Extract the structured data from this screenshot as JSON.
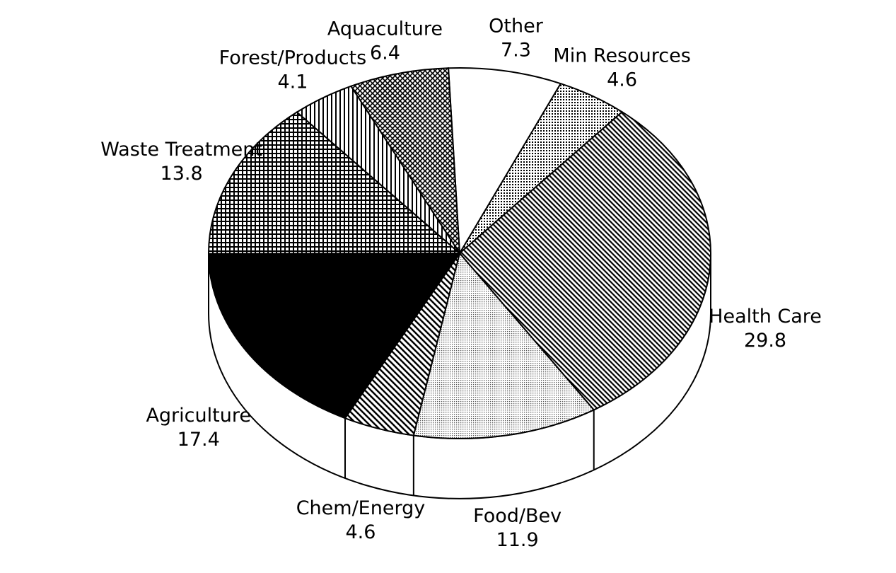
{
  "chart_data": {
    "type": "pie",
    "categories": [
      "Other",
      "Min Resources",
      "Health Care",
      "Food/Bev",
      "Chem/Energy",
      "Agriculture",
      "Waste Treatment",
      "Forest/Products",
      "Aquaculture"
    ],
    "values": [
      7.3,
      4.6,
      29.8,
      11.9,
      4.6,
      17.4,
      13.8,
      4.1,
      6.4
    ]
  }
}
